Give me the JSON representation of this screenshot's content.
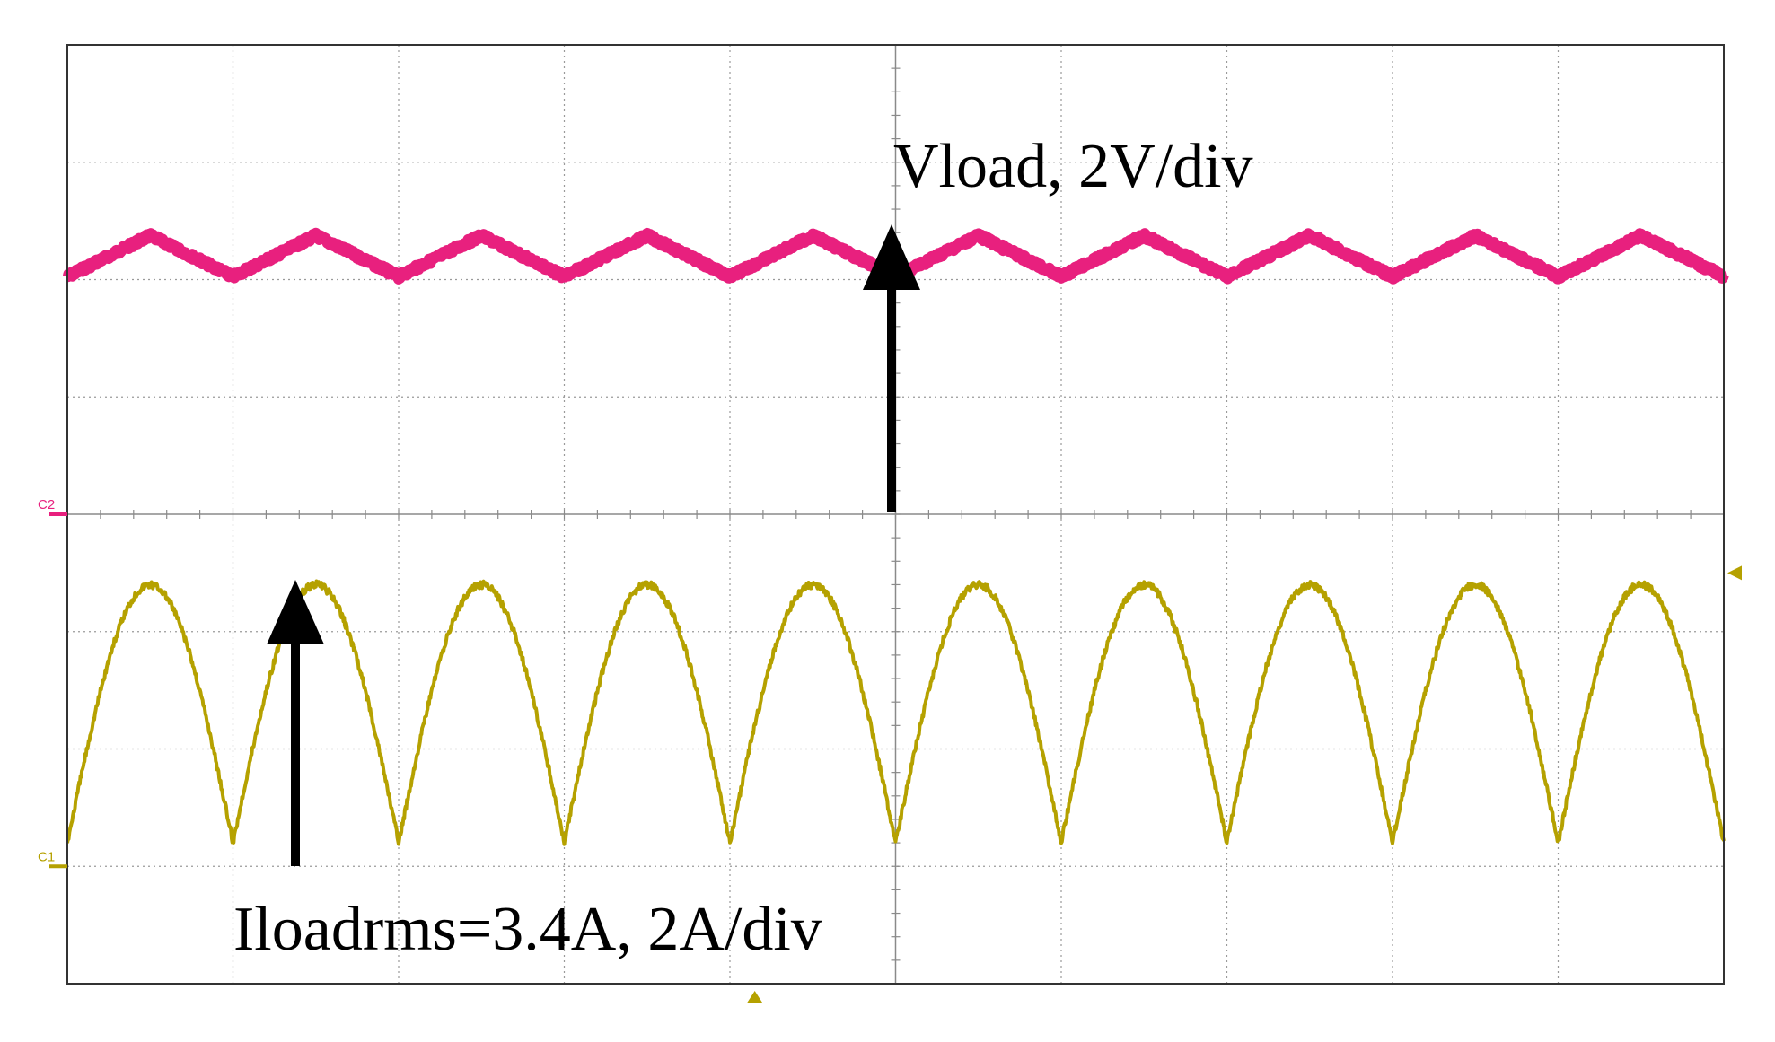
{
  "chart_data": {
    "type": "line",
    "title": "",
    "xlabel": "",
    "ylabel": "",
    "grid": true,
    "divisions": {
      "x": 10,
      "y": 8
    },
    "series": [
      {
        "channel_label": "C2",
        "color": "#e8207e",
        "waveform": "triangle",
        "periods_on_screen": 10,
        "scale": "2V/div",
        "ground_level_div": 4,
        "mean_div": 6.2,
        "peak_to_peak_div": 0.35,
        "start_phase": "peak"
      },
      {
        "channel_label": "C1",
        "color": "#b5a100",
        "waveform": "rectified-sine",
        "periods_on_screen": 10,
        "scale": "2A/div",
        "ground_level_div": 1,
        "min_div": 1.2,
        "max_div": 3.4,
        "start_phase": "trough"
      }
    ],
    "annotations": [
      {
        "text": "Vload, 2V/div"
      },
      {
        "text": "Iloadrms=3.4A, 2A/div"
      }
    ],
    "markers": {
      "trigger_level": "right-edge",
      "trigger_position": "bottom"
    }
  }
}
